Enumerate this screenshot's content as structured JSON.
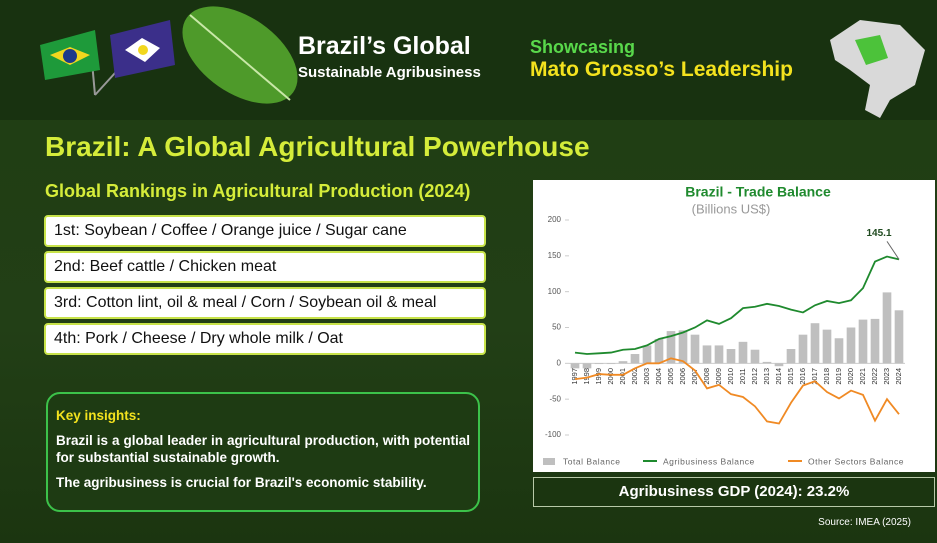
{
  "header": {
    "title_line1": "Brazil’s Global",
    "title_line2": "Sustainable Agribusiness",
    "tagline1": "Showcasing",
    "tagline2": "Mato Grosso’s Leadership"
  },
  "heading": "Brazil: A Global Agricultural Powerhouse",
  "rankings": {
    "title": "Global Rankings in Agricultural Production (2024)",
    "items": [
      "1st: Soybean / Coffee / Orange juice / Sugar cane",
      "2nd: Beef cattle / Chicken meat",
      "3rd: Cotton lint, oil & meal / Corn / Soybean oil & meal",
      "4th: Pork / Cheese / Dry whole milk / Oat"
    ]
  },
  "insights": {
    "title": "Key insights:",
    "points": [
      "Brazil is a global leader in agricultural production, with potential for substantial sustainable growth.",
      "The agribusiness is crucial for Brazil's economic stability."
    ]
  },
  "gdp_note": "Agribusiness GDP (2024): 23.2%",
  "source": "Source: IMEA (2025)",
  "chart_data": {
    "type": "bar-line",
    "title": "Brazil - Trade Balance",
    "subtitle": "(Billions US$)",
    "categories": [
      "1997",
      "1998",
      "1999",
      "2000",
      "2001",
      "2002",
      "2003",
      "2004",
      "2005",
      "2006",
      "2007",
      "2008",
      "2009",
      "2010",
      "2011",
      "2012",
      "2013",
      "2014",
      "2015",
      "2016",
      "2017",
      "2018",
      "2019",
      "2020",
      "2021",
      "2022",
      "2023",
      "2024"
    ],
    "ylim": [
      -100,
      200
    ],
    "yticks": [
      -100,
      -50,
      0,
      50,
      100,
      150,
      200
    ],
    "series": [
      {
        "name": "Total Balance",
        "kind": "bar",
        "color": "#bfbfbf",
        "values": [
          -7,
          -7,
          -1,
          -1,
          3,
          13,
          25,
          34,
          45,
          46,
          40,
          25,
          25,
          20,
          30,
          19,
          2,
          -4,
          20,
          40,
          56,
          47,
          35,
          50,
          61,
          62,
          99,
          74
        ]
      },
      {
        "name": "Agribusiness Balance",
        "kind": "line",
        "color": "#1f8a2e",
        "values": [
          15,
          13,
          14,
          15,
          19,
          20,
          25,
          34,
          38,
          43,
          50,
          60,
          55,
          63,
          77,
          79,
          83,
          80,
          75,
          71,
          81,
          87,
          84,
          88,
          105,
          142,
          149,
          145.1
        ]
      },
      {
        "name": "Other Sectors Balance",
        "kind": "line",
        "color": "#f08a24",
        "values": [
          -22,
          -20,
          -15,
          -16,
          -16,
          -7,
          0,
          0,
          7,
          3,
          -10,
          -35,
          -30,
          -43,
          -47,
          -60,
          -81,
          -84,
          -55,
          -31,
          -25,
          -40,
          -49,
          -38,
          -44,
          -80,
          -50,
          -71
        ]
      }
    ],
    "annotation_index": 27
  }
}
